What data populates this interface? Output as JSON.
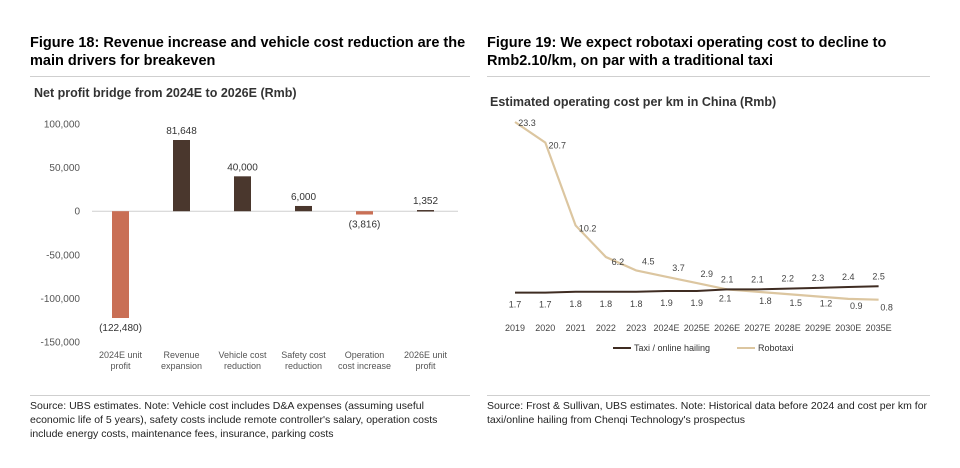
{
  "left": {
    "fig_title": "Figure 18: Revenue increase and vehicle cost reduction are the main drivers for breakeven",
    "source": "Source: UBS estimates. Note: Vehicle cost includes D&A expenses (assuming useful economic life of 5 years), safety costs include remote controller's salary, operation costs include energy costs, maintenance fees, insurance, parking costs"
  },
  "right": {
    "fig_title": "Figure 19: We expect robotaxi operating cost to decline to Rmb2.10/km, on par with a traditional taxi",
    "source": "Source: Frost & Sullivan, UBS estimates. Note: Historical data before 2024 and cost per km for taxi/online hailing from Chenqi Technology's prospectus"
  },
  "chart_data": [
    {
      "type": "bar",
      "title": "Net profit bridge from 2024E to 2026E (Rmb)",
      "categories": [
        [
          "2024E unit",
          "profit"
        ],
        [
          "Revenue",
          "expansion"
        ],
        [
          "Vehicle cost",
          "reduction"
        ],
        [
          "Safety cost",
          "reduction"
        ],
        [
          "Operation",
          "cost increase"
        ],
        [
          "2026E unit",
          "profit"
        ]
      ],
      "values": [
        -122480,
        81648,
        40000,
        6000,
        -3816,
        1352
      ],
      "value_labels": [
        "(122,480)",
        "81,648",
        "40,000",
        "6,000",
        "(3,816)",
        "1,352"
      ],
      "bar_colors": [
        "#c96f55",
        "#4a372d",
        "#4a372d",
        "#4a372d",
        "#c96f55",
        "#4a372d"
      ],
      "ylim": [
        -150000,
        100000
      ],
      "yticks": [
        100000,
        50000,
        0,
        -50000,
        -100000,
        -150000
      ],
      "ytick_labels": [
        "100,000",
        "50,000",
        "0",
        "-50,000",
        "-100,000",
        "-150,000"
      ],
      "xlabel": "",
      "ylabel": ""
    },
    {
      "type": "line",
      "title": "Estimated operating cost per km in China (Rmb)",
      "x": [
        "2019",
        "2020",
        "2021",
        "2022",
        "2023",
        "2024E",
        "2025E",
        "2026E",
        "2027E",
        "2028E",
        "2029E",
        "2030E",
        "2035E"
      ],
      "ylim": [
        0,
        23.3
      ],
      "series": [
        {
          "name": "Taxi / online hailing",
          "color": "#3f2c22",
          "values": [
            1.7,
            1.7,
            1.8,
            1.8,
            1.8,
            1.9,
            1.9,
            2.1,
            2.1,
            2.2,
            2.3,
            2.4,
            2.5
          ],
          "labels": [
            "1.7",
            "1.7",
            "1.8",
            "1.8",
            "1.8",
            "1.9",
            "1.9",
            "2.1",
            "2.1",
            "2.2",
            "2.3",
            "2.4",
            "2.5"
          ]
        },
        {
          "name": "Robotaxi",
          "color": "#dcc6a0",
          "values": [
            23.3,
            20.7,
            10.2,
            6.2,
            4.5,
            3.7,
            2.9,
            2.1,
            1.8,
            1.5,
            1.2,
            0.9,
            0.8
          ],
          "labels": [
            "23.3",
            "20.7",
            "10.2",
            "6.2",
            "4.5",
            "3.7",
            "2.9",
            "2.1",
            "1.8",
            "1.5",
            "1.2",
            "0.9",
            "0.8"
          ]
        }
      ],
      "xlabel": "",
      "ylabel": "",
      "legend": "bottom"
    }
  ]
}
